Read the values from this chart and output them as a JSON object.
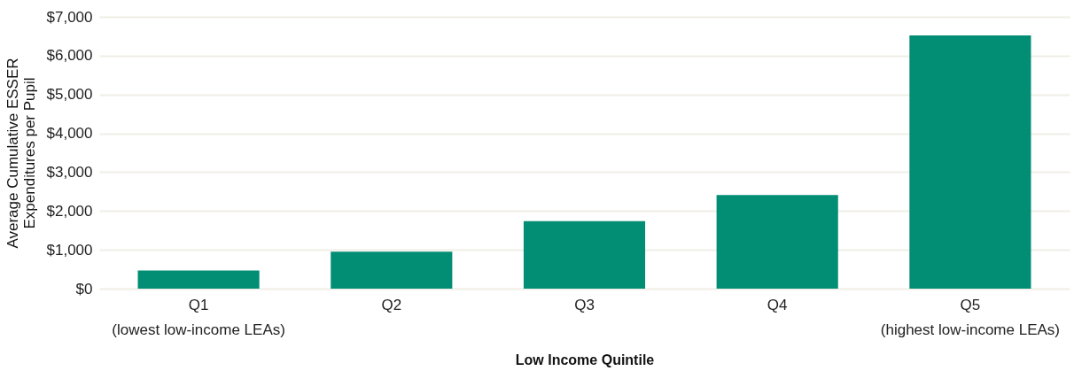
{
  "chart_data": {
    "type": "bar",
    "xlabel": "Low Income Quintile",
    "ylabel": "Average Cumulative ESSER\nExpenditures per Pupil",
    "categories": [
      "Q1\n(lowest low-income LEAs)",
      "Q2",
      "Q3",
      "Q4",
      "Q5\n(highest low-income LEAs)"
    ],
    "values": [
      470,
      950,
      1740,
      2410,
      6520
    ],
    "color": "#028e74",
    "ylim": [
      0,
      7000
    ],
    "yticks": [
      {
        "value": 0,
        "label": "$0"
      },
      {
        "value": 1000,
        "label": "$1,000"
      },
      {
        "value": 2000,
        "label": "$2,000"
      },
      {
        "value": 3000,
        "label": "$3,000"
      },
      {
        "value": 4000,
        "label": "$4,000"
      },
      {
        "value": 5000,
        "label": "$5,000"
      },
      {
        "value": 6000,
        "label": "$6,000"
      },
      {
        "value": 7000,
        "label": "$7,000"
      }
    ],
    "grid": "y"
  }
}
